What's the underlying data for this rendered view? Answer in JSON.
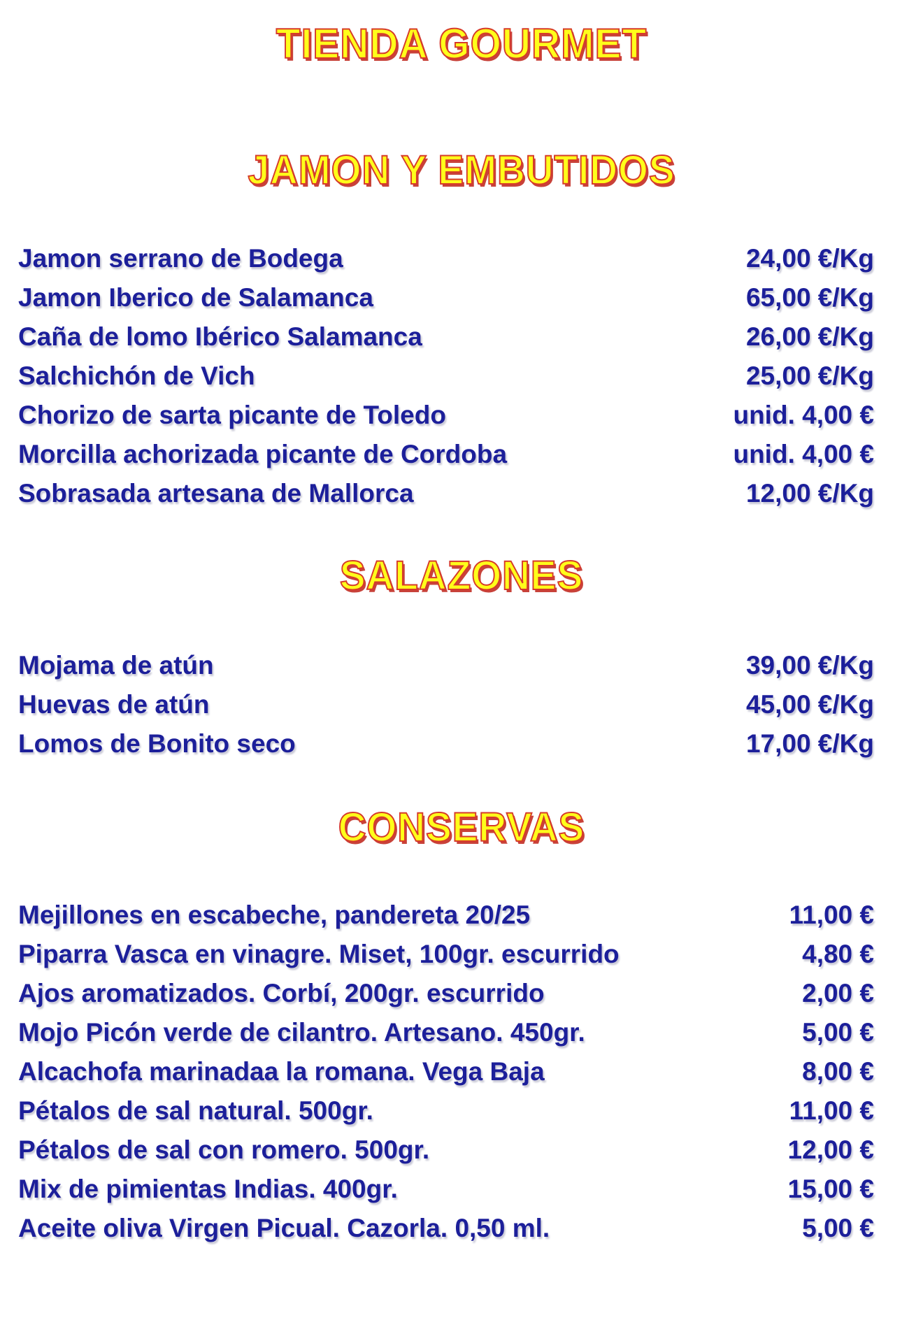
{
  "title": "TIENDA GOURMET",
  "colors": {
    "heading_fill": "#ffff1a",
    "heading_outline": "#d63a2a",
    "item_text": "#1c1f9a"
  },
  "sections": [
    {
      "heading": "JAMON Y EMBUTIDOS",
      "items": [
        {
          "name": "Jamon serrano de Bodega",
          "price": "24,00 €/Kg"
        },
        {
          "name": "Jamon Iberico de Salamanca",
          "price": "65,00 €/Kg"
        },
        {
          "name": "Caña de lomo Ibérico Salamanca",
          "price": "26,00 €/Kg"
        },
        {
          "name": "Salchichón de Vich",
          "price": "25,00 €/Kg"
        },
        {
          "name": "Chorizo de sarta picante de Toledo",
          "price": "unid. 4,00 €"
        },
        {
          "name": "Morcilla achorizada picante de Cordoba",
          "price": "unid. 4,00 €"
        },
        {
          "name": "Sobrasada artesana de Mallorca",
          "price": "12,00 €/Kg"
        }
      ]
    },
    {
      "heading": "SALAZONES",
      "items": [
        {
          "name": "Mojama de atún",
          "price": "39,00 €/Kg"
        },
        {
          "name": "Huevas de atún",
          "price": "45,00 €/Kg"
        },
        {
          "name": "Lomos de Bonito seco",
          "price": "17,00 €/Kg"
        }
      ]
    },
    {
      "heading": "CONSERVAS",
      "items": [
        {
          "name": "Mejillones en escabeche, pandereta 20/25",
          "price": "11,00 €"
        },
        {
          "name": "Piparra Vasca en vinagre. Miset, 100gr. escurrido",
          "price": "4,80 €"
        },
        {
          "name": "Ajos aromatizados. Corbí, 200gr. escurrido",
          "price": "2,00 €"
        },
        {
          "name": "Mojo Picón verde de cilantro. Artesano. 450gr.",
          "price": "5,00 €"
        },
        {
          "name": "Alcachofa marinadaa la romana. Vega Baja",
          "price": "8,00 €"
        },
        {
          "name": "Pétalos de sal natural. 500gr.",
          "price": "11,00 €"
        },
        {
          "name": "Pétalos de sal con romero. 500gr.",
          "price": "12,00 €"
        },
        {
          "name": "Mix de pimientas Indias. 400gr.",
          "price": "15,00 €"
        },
        {
          "name": "Aceite oliva Virgen Picual. Cazorla. 0,50 ml.",
          "price": "5,00 €"
        }
      ]
    }
  ]
}
